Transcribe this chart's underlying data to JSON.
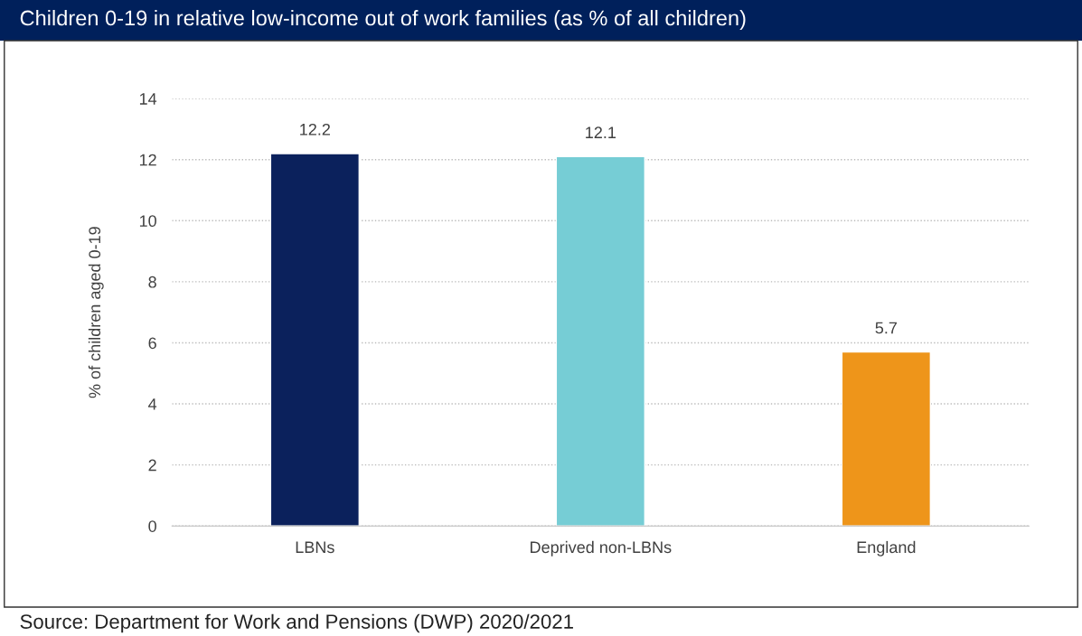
{
  "chart_data": {
    "type": "bar",
    "title": "Children 0-19 in relative low-income out of work families (as % of all children)",
    "ylabel": "% of children aged 0-19",
    "categories": [
      "LBNs",
      "Deprived non-LBNs",
      "England"
    ],
    "values": [
      12.2,
      12.1,
      5.7
    ],
    "colors": [
      "#0b215c",
      "#76cdd5",
      "#ee951a"
    ],
    "ylim": [
      0,
      14
    ],
    "yticks": [
      0,
      2,
      4,
      6,
      8,
      10,
      12,
      14
    ],
    "grid": "y",
    "data_labels": true,
    "legend": false,
    "annotations": [
      "Source: Department for Work and Pensions (DWP) 2020/2021"
    ]
  }
}
